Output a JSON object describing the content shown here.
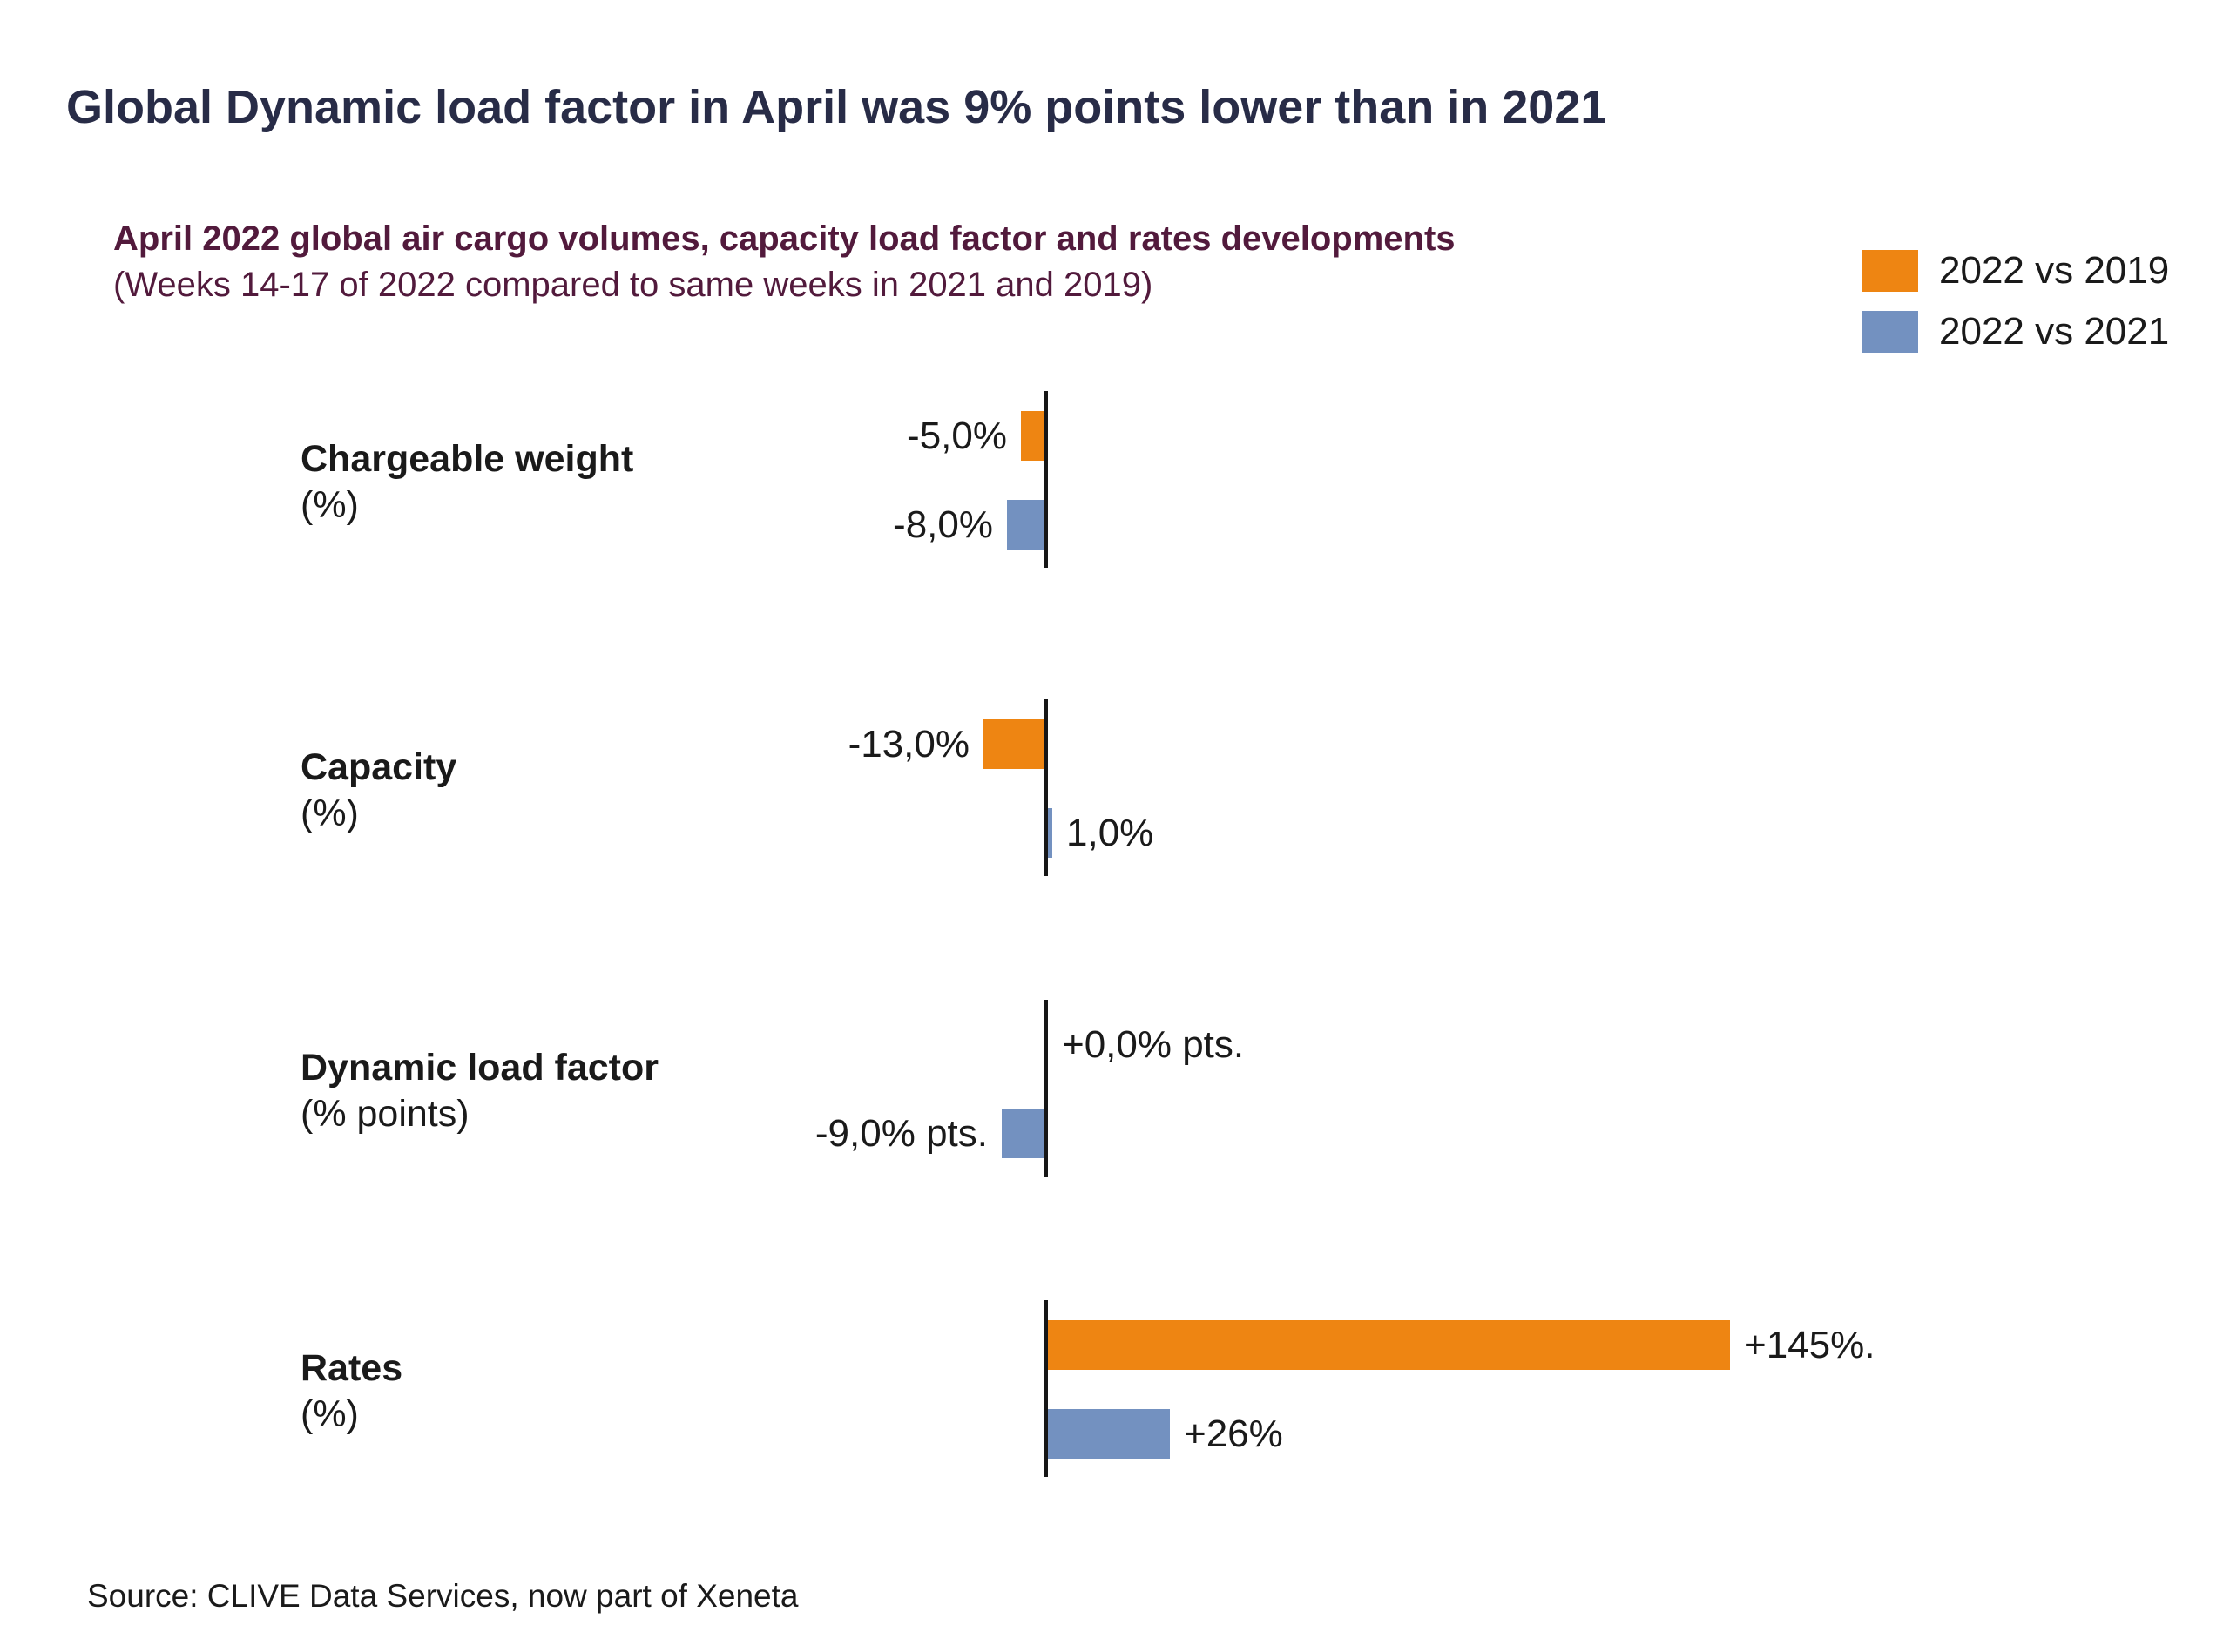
{
  "page_title": "Global Dynamic load factor in April was 9% points lower than in 2021",
  "chart_title_line1": "April 2022 global air cargo volumes, capacity load factor and rates developments",
  "chart_title_line2": "(Weeks 14-17 of 2022 compared to same weeks in 2021 and 2019)",
  "source_note": "Source: CLIVE Data Services, now part of Xeneta",
  "colors": {
    "page_title": "#282C47",
    "chart_title": "#521A3C",
    "text": "#1A1A1A",
    "axis": "#161616",
    "series_2022_vs_2019": "#EE8512",
    "series_2022_vs_2021": "#7391C0",
    "background": "#FFFFFF"
  },
  "chart_data": {
    "type": "bar",
    "orientation": "horizontal",
    "title": "April 2022 global air cargo volumes, capacity load factor and rates developments (Weeks 14-17 of 2022 compared to same weeks in 2021 and 2019)",
    "legend_position": "top-right",
    "grid": false,
    "value_axis": "hidden",
    "categories": [
      {
        "name": "Chargeable weight",
        "unit": "(%)"
      },
      {
        "name": "Capacity",
        "unit": "(%)"
      },
      {
        "name": "Dynamic load factor",
        "unit": "(% points)"
      },
      {
        "name": "Rates",
        "unit": "(%)"
      }
    ],
    "series": [
      {
        "name": "2022 vs 2019",
        "color": "#EE8512",
        "values": [
          -5.0,
          -13.0,
          0.0,
          145
        ],
        "value_labels": [
          "-5,0%",
          "-13,0%",
          "+0,0% pts.",
          "+145%."
        ]
      },
      {
        "name": "2022 vs 2021",
        "color": "#7391C0",
        "values": [
          -8.0,
          1.0,
          -9.0,
          26
        ],
        "value_labels": [
          "-8,0%",
          "1,0%",
          "-9,0% pts.",
          "+26%"
        ]
      }
    ],
    "source": "Source: CLIVE Data Services, now part of Xeneta"
  }
}
